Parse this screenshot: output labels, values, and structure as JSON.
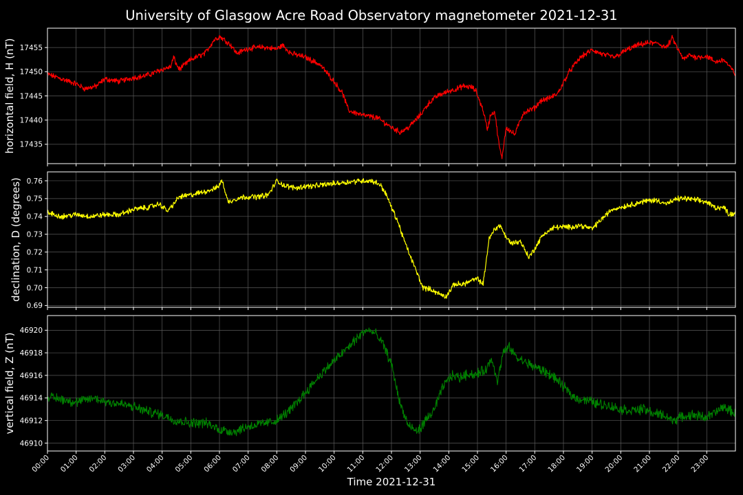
{
  "chart_data": {
    "title": "University of Glasgow Acre Road Observatory magnetometer 2021-12-31",
    "xlabel": "Time 2021-12-31",
    "x_ticks": [
      "00:00",
      "01:00",
      "02:00",
      "03:00",
      "04:00",
      "05:00",
      "06:00",
      "07:00",
      "08:00",
      "09:00",
      "10:00",
      "11:00",
      "12:00",
      "13:00",
      "14:00",
      "15:00",
      "16:00",
      "17:00",
      "18:00",
      "19:00",
      "20:00",
      "21:00",
      "22:00",
      "23:00"
    ],
    "xlim": [
      0,
      24
    ],
    "grid": true,
    "panels": [
      {
        "type": "line",
        "ylabel": "horizontal field, H (nT)",
        "color": "#ff0000",
        "ylim": [
          17431,
          17459
        ],
        "y_ticks": [
          "17435",
          "17440",
          "17445",
          "17450",
          "17455"
        ],
        "noise": 0.45,
        "x": [
          0,
          0.5,
          1,
          1.3,
          1.7,
          2,
          2.5,
          3,
          3.3,
          3.6,
          4,
          4.3,
          4.4,
          4.5,
          4.6,
          5,
          5.5,
          5.8,
          6,
          6.2,
          6.4,
          6.6,
          7,
          7.5,
          8,
          8.2,
          8.5,
          9,
          9.5,
          10,
          10.3,
          10.5,
          11,
          11.5,
          12,
          12.3,
          12.6,
          13,
          13.3,
          13.6,
          14,
          14.3,
          14.5,
          14.8,
          14.95,
          15.2,
          15.35,
          15.45,
          15.6,
          15.75,
          15.85,
          16,
          16.3,
          16.6,
          17,
          17.2,
          17.5,
          17.8,
          18.2,
          18.6,
          19,
          19.4,
          19.8,
          20.2,
          20.6,
          21,
          21.2,
          21.3,
          21.4,
          21.6,
          21.8,
          22,
          22.2,
          22.4,
          22.6,
          23,
          23.3,
          23.6,
          23.8,
          24
        ],
        "y": [
          17449.5,
          17448.5,
          17447.5,
          17446.5,
          17447,
          17448.5,
          17448,
          17448.8,
          17449,
          17449.5,
          17450.5,
          17451,
          17453,
          17451.5,
          17450.5,
          17452.5,
          17453.8,
          17456.5,
          17457.3,
          17456.5,
          17455.5,
          17453.8,
          17454.8,
          17455.1,
          17454.7,
          17455.5,
          17453.8,
          17453,
          17451.5,
          17448,
          17445.5,
          17442,
          17441,
          17440.5,
          17438.5,
          17437.5,
          17438.5,
          17441,
          17443.5,
          17445,
          17446,
          17446.5,
          17447,
          17446.8,
          17446,
          17442,
          17438,
          17441,
          17441.8,
          17435,
          17432,
          17438.5,
          17437,
          17441.5,
          17442.5,
          17444,
          17444.5,
          17445.5,
          17450,
          17453,
          17454.5,
          17453.5,
          17453,
          17454.5,
          17455.5,
          17456,
          17455.8,
          17456,
          17455.5,
          17455,
          17457,
          17454.5,
          17452.5,
          17453.5,
          17453,
          17453.2,
          17452,
          17452.5,
          17451,
          17449.5
        ]
      },
      {
        "type": "line",
        "ylabel": "declination, D (degrees)",
        "color": "#ffff00",
        "ylim": [
          0.689,
          0.765
        ],
        "y_ticks": [
          "0.69",
          "0.70",
          "0.71",
          "0.72",
          "0.73",
          "0.74",
          "0.75",
          "0.76"
        ],
        "noise": 0.0012,
        "x": [
          0,
          0.5,
          1,
          1.5,
          2,
          2.5,
          3,
          3.5,
          3.9,
          4.2,
          4.4,
          4.6,
          5,
          5.5,
          5.9,
          6.1,
          6.3,
          6.6,
          6.9,
          7.3,
          7.7,
          8,
          8.3,
          8.7,
          9,
          9.3,
          9.7,
          10.3,
          10.9,
          11.3,
          11.6,
          11.8,
          12,
          12.2,
          12.5,
          12.8,
          13.1,
          13.4,
          13.6,
          13.9,
          14.2,
          14.5,
          14.8,
          15,
          15.2,
          15.4,
          15.6,
          15.8,
          16,
          16.2,
          16.5,
          16.8,
          17,
          17.3,
          17.7,
          18.2,
          18.6,
          19,
          19.3,
          19.7,
          20.2,
          20.7,
          21,
          21.3,
          21.6,
          22,
          22.3,
          22.7,
          23,
          23.3,
          23.6,
          23.8,
          24
        ],
        "y": [
          0.742,
          0.74,
          0.741,
          0.74,
          0.741,
          0.741,
          0.744,
          0.745,
          0.747,
          0.743,
          0.747,
          0.751,
          0.752,
          0.754,
          0.756,
          0.76,
          0.748,
          0.75,
          0.751,
          0.751,
          0.752,
          0.76,
          0.757,
          0.756,
          0.757,
          0.757,
          0.758,
          0.759,
          0.76,
          0.76,
          0.758,
          0.753,
          0.745,
          0.738,
          0.724,
          0.712,
          0.7,
          0.699,
          0.697,
          0.695,
          0.702,
          0.702,
          0.704,
          0.705,
          0.702,
          0.727,
          0.733,
          0.735,
          0.728,
          0.725,
          0.726,
          0.717,
          0.722,
          0.73,
          0.734,
          0.734,
          0.735,
          0.733,
          0.738,
          0.744,
          0.746,
          0.748,
          0.749,
          0.749,
          0.747,
          0.75,
          0.75,
          0.749,
          0.748,
          0.745,
          0.745,
          0.741,
          0.742
        ]
      },
      {
        "type": "line",
        "ylabel": "vertical field, Z (nT)",
        "color": "#008000",
        "ylim": [
          46909.3,
          46921.3
        ],
        "y_ticks": [
          "46910",
          "46912",
          "46914",
          "46916",
          "46918",
          "46920"
        ],
        "noise": 0.35,
        "x": [
          0,
          0.5,
          1,
          1.6,
          2,
          2.5,
          3,
          3.5,
          4,
          4.5,
          5,
          5.5,
          6,
          6.5,
          7,
          7.5,
          8,
          8.5,
          9,
          9.5,
          10,
          10.5,
          10.8,
          11.1,
          11.4,
          11.7,
          12,
          12.3,
          12.6,
          12.9,
          13.2,
          13.5,
          13.8,
          14.1,
          14.4,
          14.7,
          14.9,
          15.1,
          15.3,
          15.5,
          15.7,
          15.9,
          16.1,
          16.4,
          16.8,
          17.2,
          17.6,
          18,
          18.4,
          18.8,
          19.2,
          19.6,
          20,
          20.4,
          20.8,
          21.2,
          21.5,
          21.8,
          22.1,
          22.5,
          23,
          23.3,
          23.6,
          24
        ],
        "y": [
          46914.1,
          46913.9,
          46913.6,
          46914.0,
          46913.7,
          46913.5,
          46913.2,
          46912.8,
          46912.5,
          46912.0,
          46911.8,
          46911.8,
          46911.2,
          46911.0,
          46911.5,
          46911.7,
          46912.0,
          46913.0,
          46914.5,
          46916.0,
          46917.3,
          46918.5,
          46919.3,
          46920.0,
          46919.8,
          46918.8,
          46917.0,
          46913.5,
          46911.5,
          46911.0,
          46912.0,
          46913.0,
          46915.0,
          46916.0,
          46915.8,
          46916.2,
          46916.0,
          46916.3,
          46916.5,
          46917.5,
          46915.5,
          46918.0,
          46918.5,
          46917.5,
          46917.0,
          46916.5,
          46916.0,
          46915.0,
          46914.0,
          46913.8,
          46913.5,
          46913.3,
          46913.0,
          46912.9,
          46913.0,
          46912.6,
          46912.5,
          46912.0,
          46912.3,
          46912.5,
          46912.3,
          46912.7,
          46913.2,
          46912.6
        ]
      }
    ]
  }
}
